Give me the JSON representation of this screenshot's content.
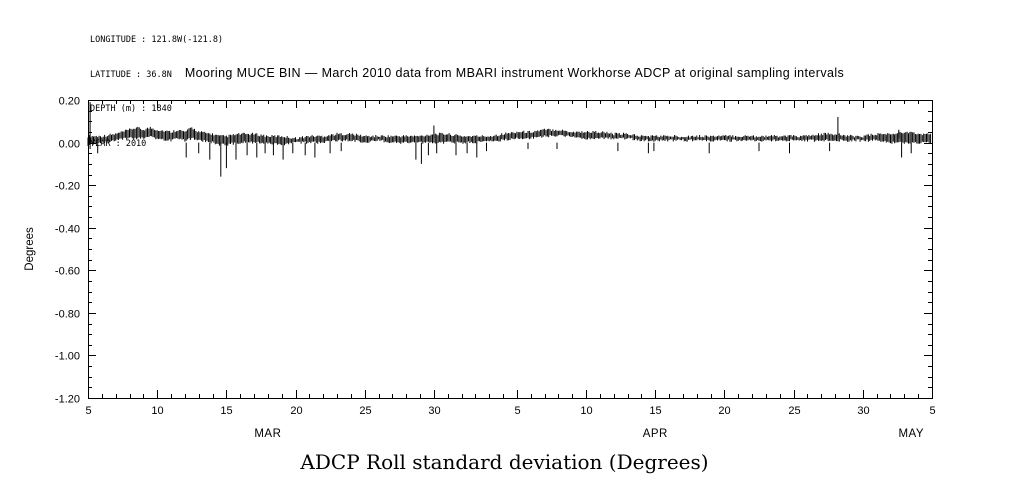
{
  "station_info": {
    "longitude": "LONGITUDE : 121.8W(-121.8)",
    "latitude": "LATITUDE : 36.8N",
    "depth": "DEPTH (m) : 1840",
    "year": "YEAR : 2010"
  },
  "chart_data": {
    "type": "line",
    "title": "Mooring MUCE BIN — March 2010 data from MBARI instrument Workhorse ADCP at original sampling intervals",
    "caption": "ADCP Roll standard deviation (Degrees)",
    "ylabel": "Degrees",
    "ylim": [
      -1.2,
      0.2
    ],
    "yticks": [
      {
        "v": 0.2,
        "label": "0.20"
      },
      {
        "v": 0.0,
        "label": "0.00"
      },
      {
        "v": -0.2,
        "label": "-0.20"
      },
      {
        "v": -0.4,
        "label": "-0.40"
      },
      {
        "v": -0.6,
        "label": "-0.60"
      },
      {
        "v": -0.8,
        "label": "-0.80"
      },
      {
        "v": -1.0,
        "label": "-1.00"
      },
      {
        "v": -1.2,
        "label": "-1.20"
      }
    ],
    "y_minor_step_deg": 0.05,
    "x_unit": "days from first tick (Mar 5) to last tick (May 5)",
    "x_range_days": [
      0,
      61
    ],
    "x_minor_step_days": 1,
    "x_major_ticks": [
      {
        "day": 0,
        "label": "5"
      },
      {
        "day": 5,
        "label": "10"
      },
      {
        "day": 10,
        "label": "15"
      },
      {
        "day": 15,
        "label": "20"
      },
      {
        "day": 20,
        "label": "25"
      },
      {
        "day": 25,
        "label": "30"
      },
      {
        "day": 31,
        "label": "5"
      },
      {
        "day": 36,
        "label": "10"
      },
      {
        "day": 41,
        "label": "15"
      },
      {
        "day": 46,
        "label": "20"
      },
      {
        "day": 51,
        "label": "25"
      },
      {
        "day": 56,
        "label": "30"
      },
      {
        "day": 61,
        "label": "5"
      }
    ],
    "months": [
      {
        "label": "MAR",
        "day": 13
      },
      {
        "label": "APR",
        "day": 41
      },
      {
        "label": "MAY",
        "day": 59.5
      }
    ],
    "grid": false,
    "legend": false,
    "line_color": "#000000",
    "envelope": [
      [
        0,
        -0.01,
        0.03
      ],
      [
        1,
        0,
        0.03
      ],
      [
        2,
        0.01,
        0.04
      ],
      [
        3,
        0.02,
        0.06
      ],
      [
        3.5,
        0.02,
        0.07
      ],
      [
        4,
        0.02,
        0.06
      ],
      [
        4.5,
        0.03,
        0.07
      ],
      [
        5,
        0.02,
        0.06
      ],
      [
        6,
        0.01,
        0.05
      ],
      [
        6.5,
        0.02,
        0.06
      ],
      [
        7,
        0.01,
        0.05
      ],
      [
        7.5,
        0.02,
        0.07
      ],
      [
        8,
        0.01,
        0.05
      ],
      [
        9,
        0,
        0.04
      ],
      [
        9.5,
        -0.01,
        0.03
      ],
      [
        10,
        -0.01,
        0.03
      ],
      [
        11,
        0,
        0.04
      ],
      [
        12,
        0,
        0.04
      ],
      [
        13,
        0,
        0.03
      ],
      [
        14,
        -0.01,
        0.03
      ],
      [
        15,
        0,
        0.02
      ],
      [
        16,
        0,
        0.03
      ],
      [
        17,
        0,
        0.03
      ],
      [
        18,
        0.01,
        0.04
      ],
      [
        19,
        0.01,
        0.04
      ],
      [
        20,
        0,
        0.03
      ],
      [
        21,
        0.01,
        0.03
      ],
      [
        22,
        0,
        0.03
      ],
      [
        23,
        0,
        0.03
      ],
      [
        24,
        0,
        0.03
      ],
      [
        25,
        0,
        0.04
      ],
      [
        26,
        0,
        0.04
      ],
      [
        27,
        0,
        0.03
      ],
      [
        28,
        0,
        0.03
      ],
      [
        29,
        0.01,
        0.03
      ],
      [
        30,
        0.01,
        0.04
      ],
      [
        31,
        0.02,
        0.05
      ],
      [
        32,
        0.02,
        0.05
      ],
      [
        33,
        0.03,
        0.06
      ],
      [
        34,
        0.03,
        0.06
      ],
      [
        35,
        0.03,
        0.05
      ],
      [
        36,
        0.02,
        0.05
      ],
      [
        37,
        0.02,
        0.05
      ],
      [
        38,
        0.02,
        0.04
      ],
      [
        39,
        0.02,
        0.04
      ],
      [
        40,
        0.01,
        0.03
      ],
      [
        42,
        0.01,
        0.03
      ],
      [
        44,
        0.01,
        0.03
      ],
      [
        46,
        0.01,
        0.03
      ],
      [
        48,
        0.01,
        0.03
      ],
      [
        50,
        0.01,
        0.03
      ],
      [
        52,
        0.01,
        0.03
      ],
      [
        53,
        0.01,
        0.04
      ],
      [
        54,
        0.01,
        0.04
      ],
      [
        55,
        0.01,
        0.03
      ],
      [
        56,
        0.01,
        0.03
      ],
      [
        57,
        0.01,
        0.04
      ],
      [
        58,
        0,
        0.04
      ],
      [
        59,
        0,
        0.05
      ],
      [
        60,
        0,
        0.04
      ],
      [
        61,
        0,
        0.04
      ]
    ],
    "spikes_down": [
      [
        0.7,
        -0.05
      ],
      [
        7.1,
        -0.07
      ],
      [
        8,
        -0.05
      ],
      [
        8.8,
        -0.08
      ],
      [
        9.6,
        -0.16
      ],
      [
        10,
        -0.12
      ],
      [
        10.7,
        -0.08
      ],
      [
        11.5,
        -0.06
      ],
      [
        12.2,
        -0.07
      ],
      [
        12.8,
        -0.05
      ],
      [
        13.4,
        -0.06
      ],
      [
        14.1,
        -0.08
      ],
      [
        14.8,
        -0.05
      ],
      [
        15.7,
        -0.06
      ],
      [
        16.4,
        -0.07
      ],
      [
        17.5,
        -0.05
      ],
      [
        18.3,
        -0.04
      ],
      [
        23.7,
        -0.08
      ],
      [
        24.1,
        -0.1
      ],
      [
        24.6,
        -0.06
      ],
      [
        25.2,
        -0.05
      ],
      [
        26.6,
        -0.06
      ],
      [
        27.4,
        -0.05
      ],
      [
        28.1,
        -0.07
      ],
      [
        28.8,
        -0.04
      ],
      [
        31.8,
        -0.03
      ],
      [
        33.9,
        -0.03
      ],
      [
        38.3,
        -0.04
      ],
      [
        40.5,
        -0.05
      ],
      [
        40.9,
        -0.04
      ],
      [
        44.9,
        -0.05
      ],
      [
        48.5,
        -0.04
      ],
      [
        50.7,
        -0.05
      ],
      [
        53.6,
        -0.04
      ],
      [
        58.8,
        -0.07
      ],
      [
        59.5,
        -0.05
      ]
    ],
    "spikes_up": [
      [
        25,
        0.08
      ],
      [
        54.2,
        0.12
      ],
      [
        58.6,
        0.06
      ]
    ],
    "event_lines": [
      [
        0.15,
        -0.03,
        0.19
      ]
    ]
  }
}
